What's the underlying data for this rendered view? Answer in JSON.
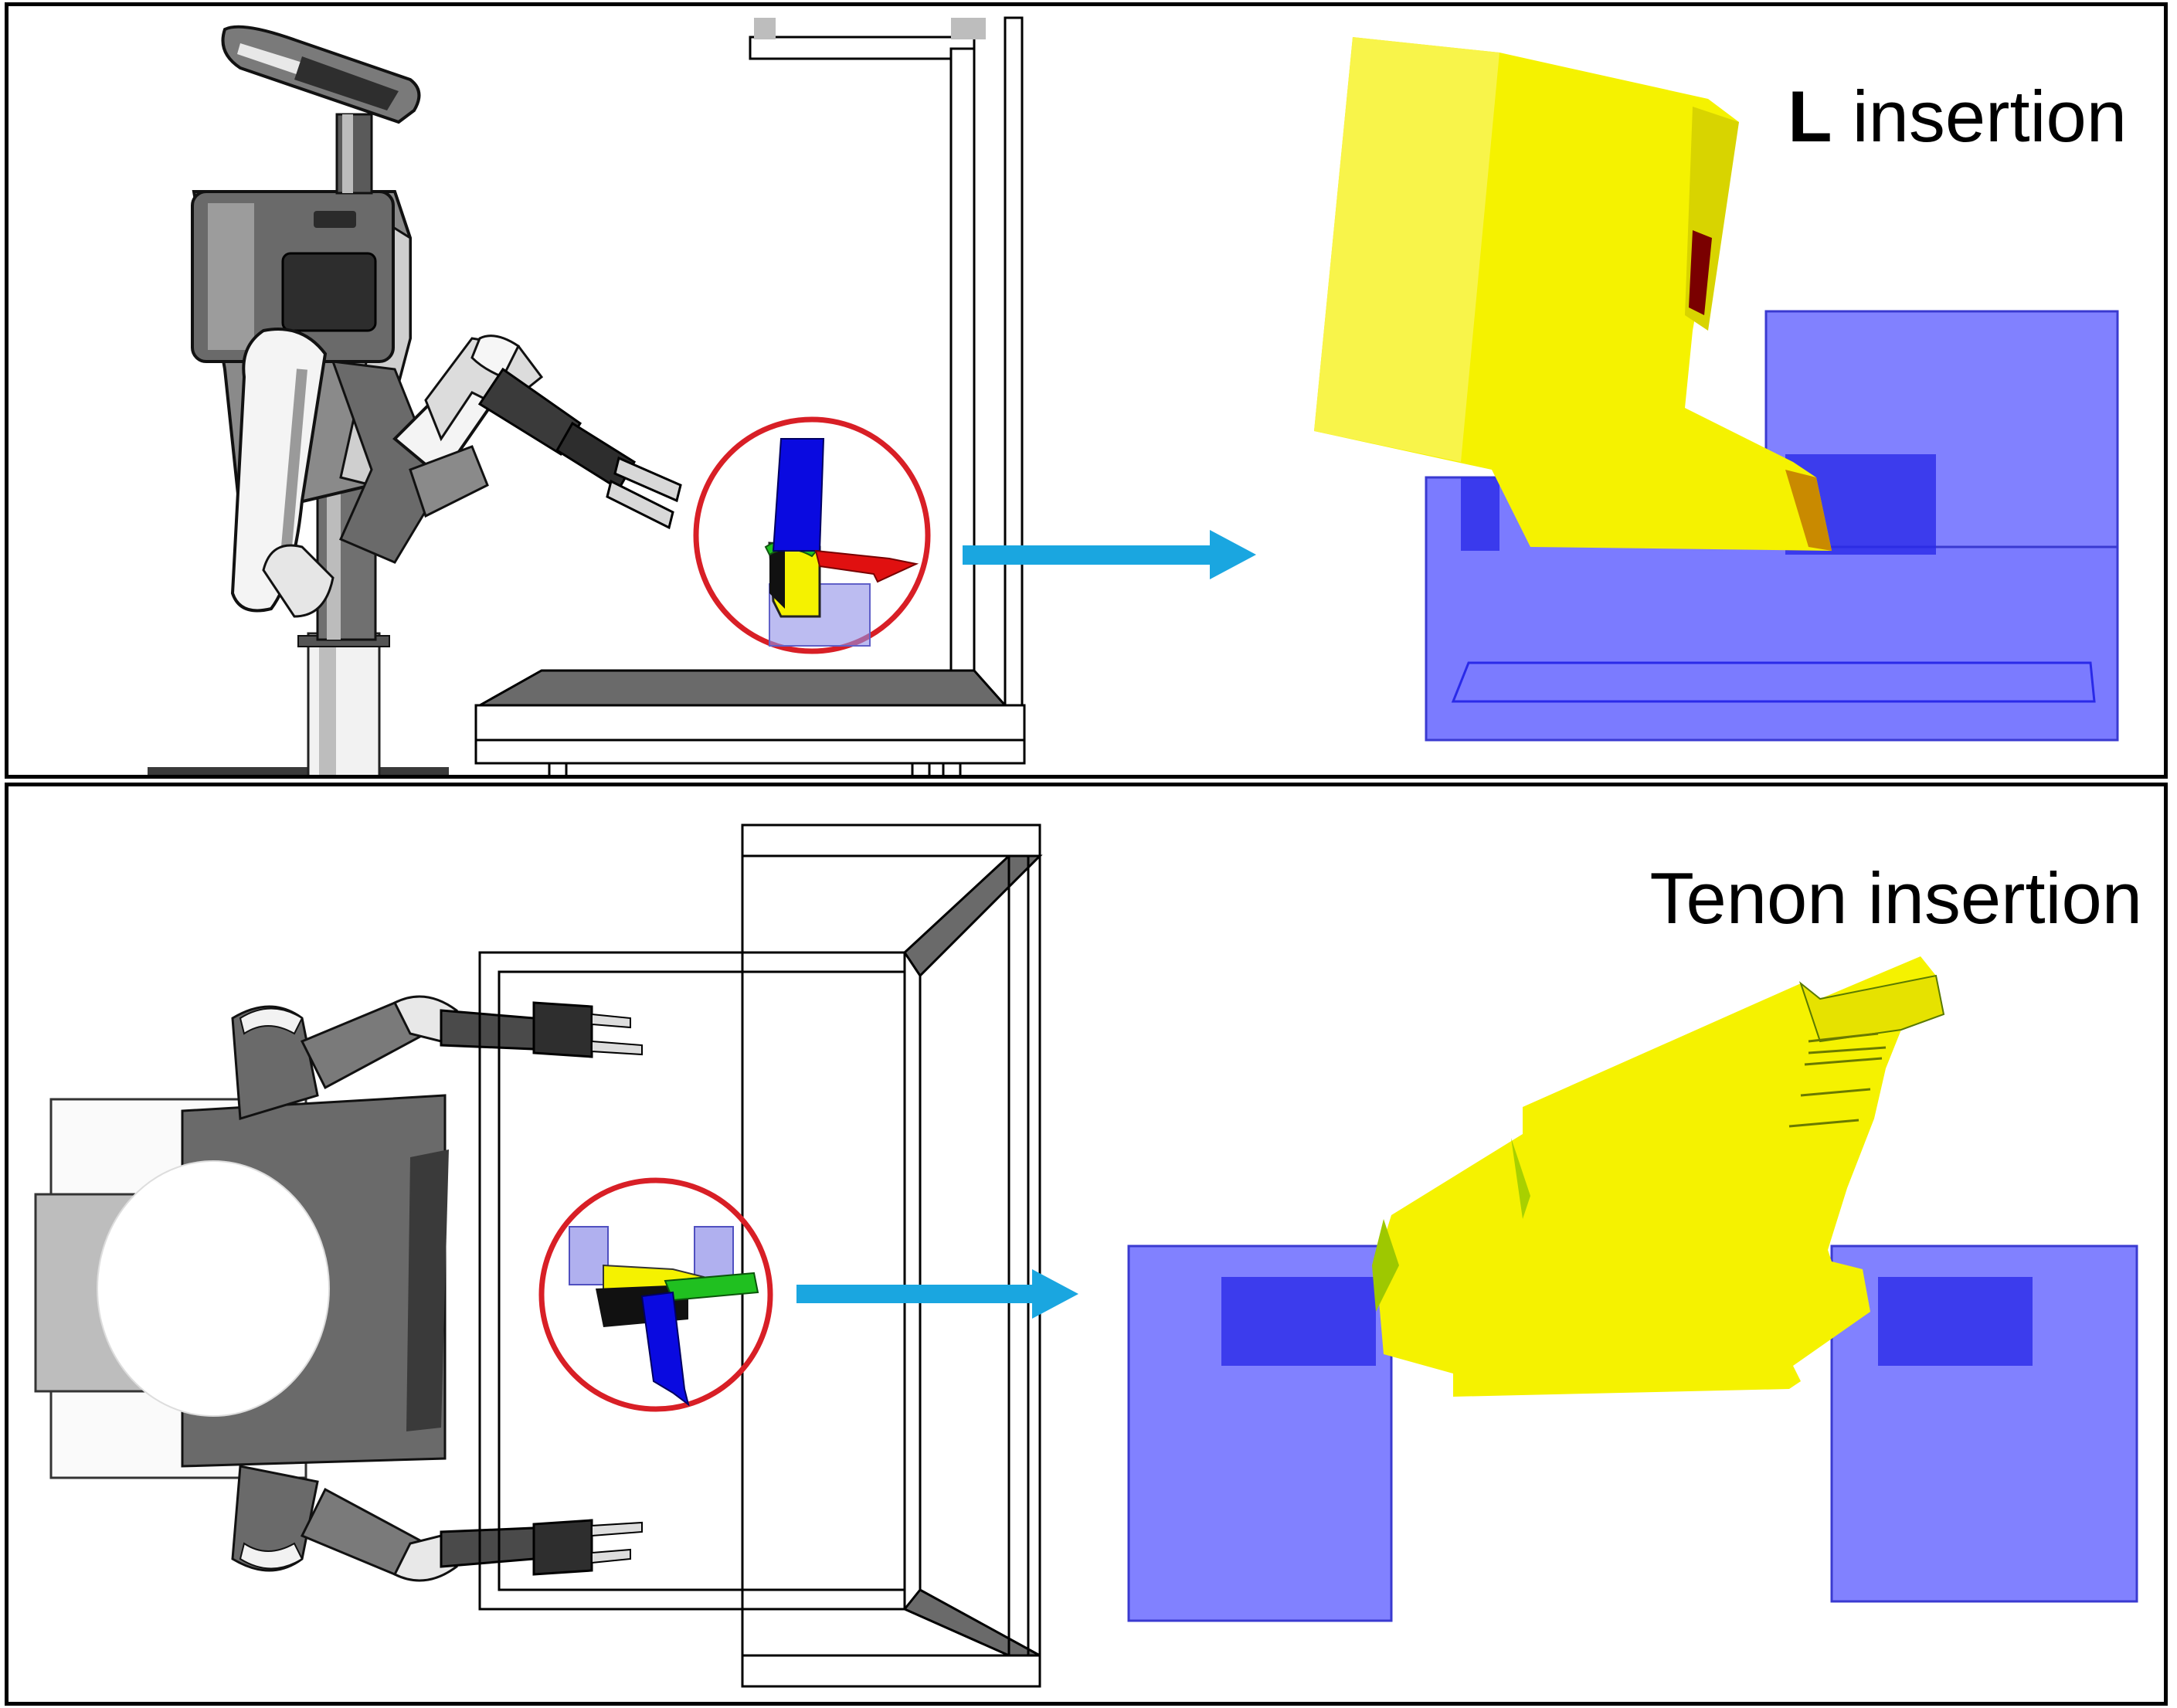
{
  "panels": {
    "top": {
      "title_bold": "L",
      "title_rest": " insertion"
    },
    "bottom": {
      "title": "Tenon insertion"
    }
  },
  "colors": {
    "highlight_circle": "#d81f26",
    "arrow": "#1aa6e0",
    "part_yellow": "#f5f200",
    "slot_blue": "#6b6bff",
    "slot_dark": "#2a2ae8",
    "axis_red": "#e01010",
    "axis_green": "#20c020",
    "axis_blue": "#0a0ae0",
    "robot_gray": "#6a6a6a"
  },
  "icons": {
    "robot": "humanoid-robot-icon",
    "zoom_arrow": "arrow-right-icon"
  }
}
